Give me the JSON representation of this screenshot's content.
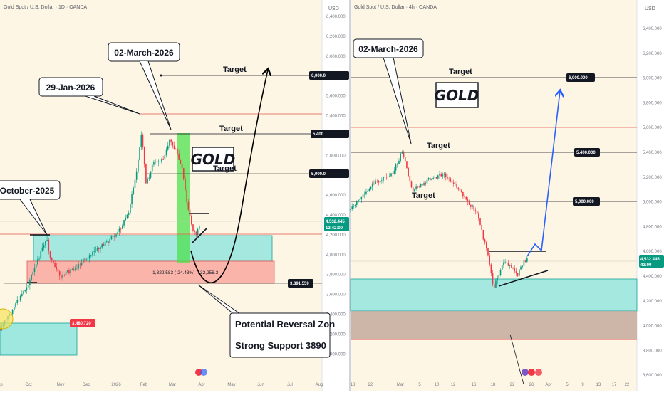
{
  "chart_data": [
    {
      "type": "candlestick",
      "title": "Gold Spot / U.S. Dollar · 1D · OANDA",
      "currency": "USD",
      "y_ticks": [
        "6,400.000",
        "6,200.000",
        "6,000.000",
        "5,800.000",
        "5,600.000",
        "5,400.000",
        "5,200.000",
        "5,000.000",
        "4,800.000",
        "4,600.000",
        "4,400.000",
        "4,200.000",
        "4,000.000",
        "3,800.000",
        "3,600.000",
        "3,400.000",
        "3,200.000",
        "3,000.000"
      ],
      "x_ticks": [
        "p",
        "Oct",
        "Nov",
        "Dec",
        "2026",
        "Feb",
        "Mar",
        "Apr",
        "May",
        "Jun",
        "Jul",
        "Aug"
      ],
      "price_labels": {
        "t6000": "6,000.0",
        "t5400": "5,400",
        "t5000": "5,000.0",
        "last": "4,532.445",
        "timer": "12:42:00",
        "support": "3,891.559",
        "zone_low": "3,480.720"
      },
      "annotations": {
        "date1": "02-March-2026",
        "date2": "29-Jan-2026",
        "date3": "October-2025",
        "target1": "Target",
        "target2": "Target",
        "target3": "Target",
        "gold": "GOLD",
        "measure": "-1,322.583 (-24.43%) -132,258.3",
        "zone1": "Potential Reversal Zon",
        "zone2": "Strong Support 3890"
      }
    },
    {
      "type": "candlestick",
      "title": "Gold Spot / U.S. Dollar · 4h · OANDA",
      "currency": "USD",
      "y_ticks": [
        "6,400.000",
        "6,200.000",
        "6,000.000",
        "5,800.000",
        "5,600.000",
        "5,400.000",
        "5,200.000",
        "5,000.000",
        "4,800.000",
        "4,600.000",
        "4,400.000",
        "4,200.000",
        "4,000.000",
        "3,800.000",
        "3,600.000"
      ],
      "x_ticks": [
        "18",
        "22",
        "Mar",
        "5",
        "10",
        "12",
        "16",
        "18",
        "22",
        "26",
        "Apr",
        "5",
        "9",
        "13",
        "17",
        "22"
      ],
      "price_labels": {
        "t6000": "6,000.000",
        "t5400": "5,400.000",
        "t5000": "5,000.000",
        "last": "4,532.445",
        "timer": "42:00"
      },
      "annotations": {
        "date1": "02-March-2026",
        "target1": "Target",
        "target2": "Target",
        "target3": "Target",
        "gold": "GOLD"
      }
    }
  ]
}
